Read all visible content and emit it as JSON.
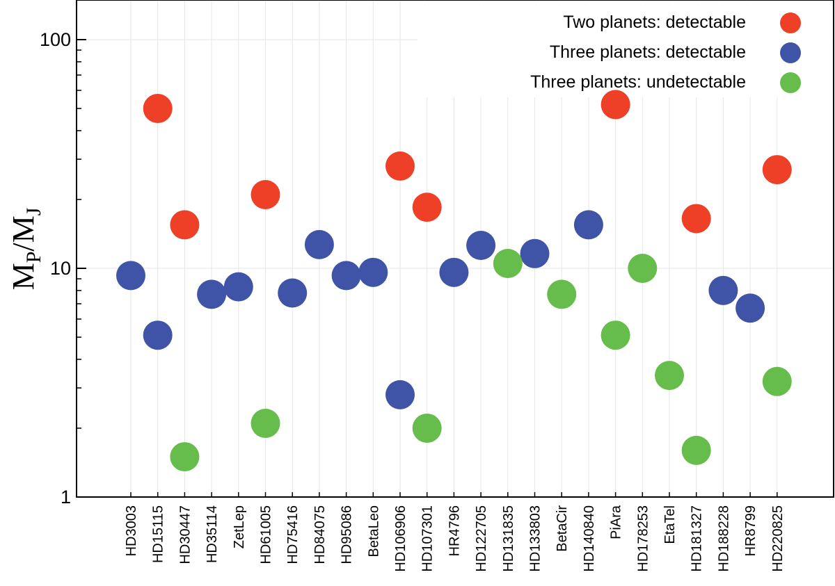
{
  "chart_data": {
    "type": "scatter",
    "title": "",
    "xlabel": "",
    "ylabel": {
      "main": "M",
      "sub1": "P",
      "sep": "/M",
      "sub2": "J"
    },
    "yscale": "log",
    "ylim": [
      1,
      150
    ],
    "yticks": [
      {
        "value": 1,
        "label": "1"
      },
      {
        "value": 10,
        "label": "10"
      },
      {
        "value": 100,
        "label": "100"
      }
    ],
    "grid": true,
    "legend_position": "top-right",
    "categories": [
      "HD3003",
      "HD15115",
      "HD30447",
      "HD35114",
      "ZetLep",
      "HD61005",
      "HD75416",
      "HD84075",
      "HD95086",
      "BetaLeo",
      "HD106906",
      "HD107301",
      "HR4796",
      "HD122705",
      "HD131835",
      "HD133803",
      "BetaCir",
      "HD140840",
      "PiAra",
      "HD178253",
      "EtaTel",
      "HD181327",
      "HD188228",
      "HR8799",
      "HD220825"
    ],
    "series": [
      {
        "name": "Two planets: detectable",
        "color": "#ee4027",
        "points": [
          {
            "category": "HD15115",
            "y": 50
          },
          {
            "category": "HD30447",
            "y": 15.5
          },
          {
            "category": "HD61005",
            "y": 21
          },
          {
            "category": "HD106906",
            "y": 28
          },
          {
            "category": "HD107301",
            "y": 18.5
          },
          {
            "category": "PiAra",
            "y": 52
          },
          {
            "category": "HD181327",
            "y": 16.5
          },
          {
            "category": "HD220825",
            "y": 27
          }
        ]
      },
      {
        "name": "Three planets: detectable",
        "color": "#3f54a6",
        "points": [
          {
            "category": "HD3003",
            "y": 9.3
          },
          {
            "category": "HD15115",
            "y": 5.1
          },
          {
            "category": "HD35114",
            "y": 7.7
          },
          {
            "category": "ZetLep",
            "y": 8.3
          },
          {
            "category": "HD75416",
            "y": 7.8
          },
          {
            "category": "HD84075",
            "y": 12.7
          },
          {
            "category": "HD95086",
            "y": 9.3
          },
          {
            "category": "BetaLeo",
            "y": 9.6
          },
          {
            "category": "HD106906",
            "y": 2.8
          },
          {
            "category": "HR4796",
            "y": 9.6
          },
          {
            "category": "HD122705",
            "y": 12.6
          },
          {
            "category": "HD133803",
            "y": 11.6
          },
          {
            "category": "HD140840",
            "y": 15.5
          },
          {
            "category": "HD188228",
            "y": 8.0
          },
          {
            "category": "HR8799",
            "y": 6.7
          }
        ]
      },
      {
        "name": "Three planets: undetectable",
        "color": "#66bd4b",
        "points": [
          {
            "category": "HD30447",
            "y": 1.5
          },
          {
            "category": "HD61005",
            "y": 2.1
          },
          {
            "category": "HD107301",
            "y": 2.0
          },
          {
            "category": "HD131835",
            "y": 10.5
          },
          {
            "category": "BetaCir",
            "y": 7.7
          },
          {
            "category": "PiAra",
            "y": 5.1
          },
          {
            "category": "HD178253",
            "y": 10.0
          },
          {
            "category": "EtaTel",
            "y": 3.4
          },
          {
            "category": "HD181327",
            "y": 1.6
          },
          {
            "category": "HD220825",
            "y": 3.2
          }
        ]
      }
    ]
  }
}
